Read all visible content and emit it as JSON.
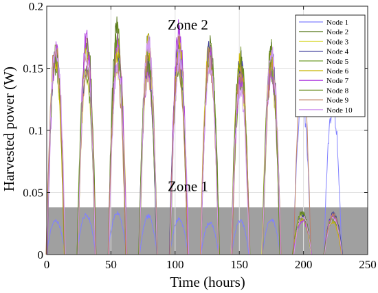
{
  "chart_data": {
    "type": "line",
    "xlabel": "Time (hours)",
    "ylabel": "Harvested power (W)",
    "xlim": [
      0,
      250
    ],
    "ylim": [
      0,
      0.2
    ],
    "xticks": [
      0,
      50,
      100,
      150,
      200,
      250
    ],
    "yticks": [
      0,
      0.05,
      0.1,
      0.15,
      0.2
    ],
    "xtick_labels": [
      "0",
      "50",
      "100",
      "150",
      "200",
      "250"
    ],
    "ytick_labels": [
      "0",
      "0.05",
      "0.1",
      "0.15",
      "0.2"
    ],
    "grid": true,
    "legend_position": "top-right",
    "annotations": [
      {
        "text": "Zone 2",
        "x": 110,
        "y": 0.185
      },
      {
        "text": "Zone 1",
        "x": 110,
        "y": 0.055
      }
    ],
    "zone1_band": {
      "y_from": 0,
      "y_to": 0.038,
      "color": "#a0a0a0"
    },
    "day_cycle": {
      "day_centers": [
        7,
        31,
        55,
        79,
        103,
        127,
        151,
        175,
        199,
        223
      ],
      "half_width": 7,
      "zone2_peaks": [
        0.165,
        0.165,
        0.168,
        0.16,
        0.165,
        0.155,
        0.15,
        0.155,
        0.14,
        0.135
      ],
      "zone1_peaks": [
        0.03,
        0.032,
        0.032,
        0.031,
        0.032,
        0.03,
        0.031,
        0.031,
        0.031,
        0.031
      ]
    },
    "series": [
      {
        "name": "Node 1",
        "color": "#8080ff",
        "zone2_days": [
          9,
          10
        ],
        "zone1_days": [
          1,
          2,
          3,
          4,
          5,
          6,
          7,
          8,
          9,
          10
        ]
      },
      {
        "name": "Node 2",
        "color": "#5a7a1e",
        "zone2_days": [
          1,
          2,
          3,
          4,
          5,
          6,
          7,
          8
        ],
        "zone1_days": [
          9,
          10
        ]
      },
      {
        "name": "Node 3",
        "color": "#e3e36a",
        "zone2_days": [
          1,
          2,
          3,
          4,
          5,
          6,
          7,
          8
        ],
        "zone1_days": [
          9,
          10
        ]
      },
      {
        "name": "Node 4",
        "color": "#3b3b9a",
        "zone2_days": [
          1,
          2,
          3,
          4,
          5,
          6,
          7,
          8
        ],
        "zone1_days": [
          9,
          10
        ]
      },
      {
        "name": "Node 5",
        "color": "#7aa33a",
        "zone2_days": [
          1,
          2,
          3,
          4,
          5,
          6,
          7,
          8
        ],
        "zone1_days": [
          9,
          10
        ]
      },
      {
        "name": "Node 6",
        "color": "#c8b400",
        "zone2_days": [
          1,
          2,
          3,
          4,
          5,
          6,
          7,
          8
        ],
        "zone1_days": [
          9,
          10
        ]
      },
      {
        "name": "Node 7",
        "color": "#b040e0",
        "zone2_days": [
          1,
          2,
          3,
          4,
          5,
          6,
          7,
          8
        ],
        "zone1_days": [
          9,
          10
        ]
      },
      {
        "name": "Node 8",
        "color": "#6b8e23",
        "zone2_days": [
          1,
          2,
          3,
          4,
          5,
          6,
          7,
          8
        ],
        "zone1_days": [
          9,
          10
        ]
      },
      {
        "name": "Node 9",
        "color": "#c08060",
        "zone2_days": [
          1,
          2,
          3,
          4,
          5,
          6,
          7,
          8,
          9
        ],
        "zone1_days": [
          10
        ]
      },
      {
        "name": "Node 10",
        "color": "#d29bf0",
        "zone2_days": [
          1,
          2,
          3,
          4,
          5,
          6,
          7,
          8
        ],
        "zone1_days": [
          9,
          10
        ]
      }
    ]
  }
}
